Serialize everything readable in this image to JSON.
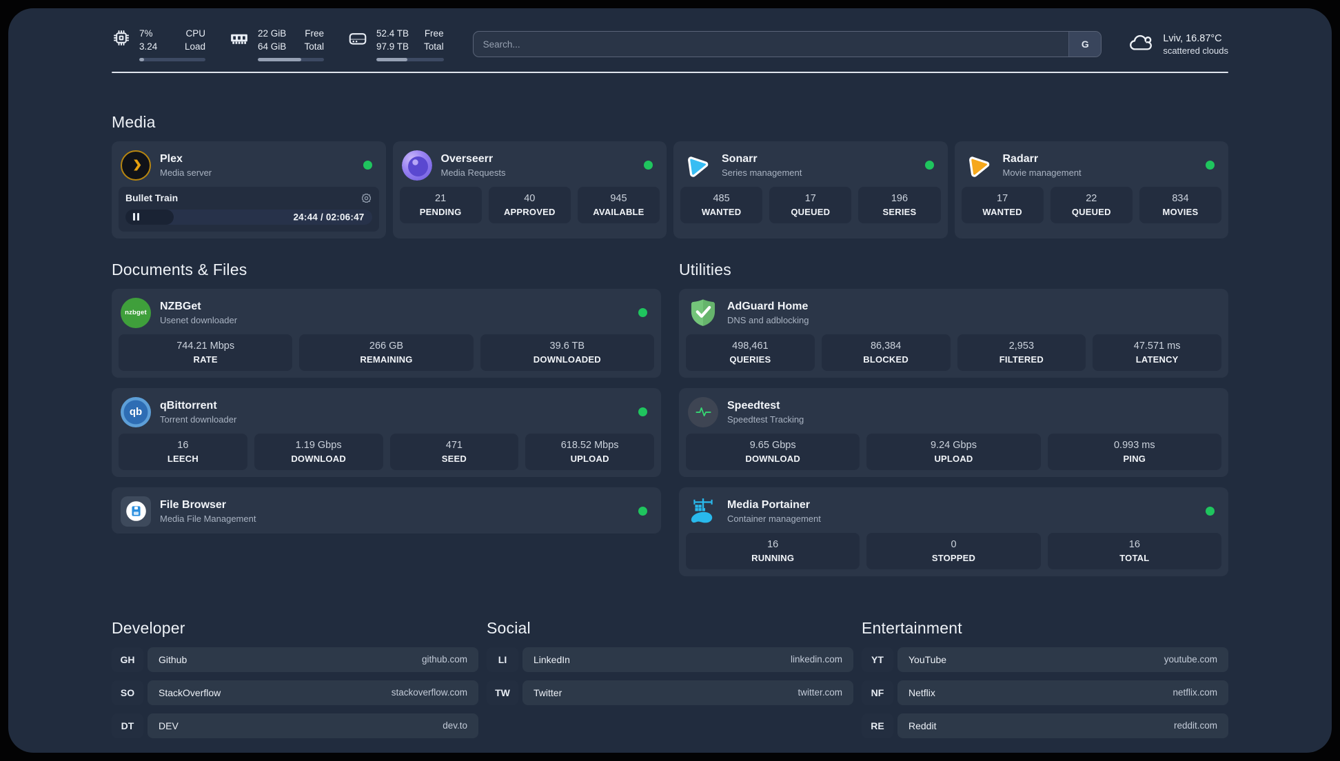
{
  "colors": {
    "status_online": "#1fc55e",
    "accent_plex": "#e6a00e",
    "accent_sonarr": "#38bdf3",
    "accent_radarr": "#f6a81c",
    "accent_adguard": "#66b46c",
    "accent_portainer": "#29b9ec",
    "accent_speedtest": "#35d873"
  },
  "topbar": {
    "system_stats": [
      {
        "icon": "cpu-icon",
        "values": [
          "7%",
          "3.24"
        ],
        "labels": [
          "CPU",
          "Load"
        ],
        "progress_pct": 7
      },
      {
        "icon": "ram-icon",
        "values": [
          "22 GiB",
          "64 GiB"
        ],
        "labels": [
          "Free",
          "Total"
        ],
        "progress_pct": 66
      },
      {
        "icon": "disk-icon",
        "values": [
          "52.4 TB",
          "97.9 TB"
        ],
        "labels": [
          "Free",
          "Total"
        ],
        "progress_pct": 46
      }
    ],
    "search": {
      "placeholder": "Search...",
      "engine_label": "G"
    },
    "weather": {
      "location_temp": "Lviv, 16.87°C",
      "condition": "scattered clouds"
    }
  },
  "sections": {
    "media": {
      "title": "Media",
      "apps": [
        {
          "name": "Plex",
          "subtitle": "Media server",
          "icon": "plex-icon",
          "status": "online",
          "player": {
            "title": "Bullet Train",
            "elapsed": "24:44",
            "duration": "02:06:47",
            "progress_pct": 19.5
          }
        },
        {
          "name": "Overseerr",
          "subtitle": "Media Requests",
          "icon": "overseerr-icon",
          "status": "online",
          "stats": [
            {
              "value": "21",
              "label": "PENDING"
            },
            {
              "value": "40",
              "label": "APPROVED"
            },
            {
              "value": "945",
              "label": "AVAILABLE"
            }
          ]
        },
        {
          "name": "Sonarr",
          "subtitle": "Series management",
          "icon": "sonarr-icon",
          "status": "online",
          "stats": [
            {
              "value": "485",
              "label": "WANTED"
            },
            {
              "value": "17",
              "label": "QUEUED"
            },
            {
              "value": "196",
              "label": "SERIES"
            }
          ]
        },
        {
          "name": "Radarr",
          "subtitle": "Movie management",
          "icon": "radarr-icon",
          "status": "online",
          "stats": [
            {
              "value": "17",
              "label": "WANTED"
            },
            {
              "value": "22",
              "label": "QUEUED"
            },
            {
              "value": "834",
              "label": "MOVIES"
            }
          ]
        }
      ]
    },
    "documents": {
      "title": "Documents & Files",
      "apps": [
        {
          "name": "NZBGet",
          "subtitle": "Usenet downloader",
          "icon": "nzbget-icon",
          "status": "online",
          "stats": [
            {
              "value": "744.21 Mbps",
              "label": "RATE"
            },
            {
              "value": "266 GB",
              "label": "REMAINING"
            },
            {
              "value": "39.6 TB",
              "label": "DOWNLOADED"
            }
          ]
        },
        {
          "name": "qBittorrent",
          "subtitle": "Torrent downloader",
          "icon": "qbittorrent-icon",
          "status": "online",
          "stats": [
            {
              "value": "16",
              "label": "LEECH"
            },
            {
              "value": "1.19 Gbps",
              "label": "DOWNLOAD"
            },
            {
              "value": "471",
              "label": "SEED"
            },
            {
              "value": "618.52 Mbps",
              "label": "UPLOAD"
            }
          ]
        },
        {
          "name": "File Browser",
          "subtitle": "Media File Management",
          "icon": "filebrowser-icon",
          "status": "online",
          "stats": []
        }
      ]
    },
    "utilities": {
      "title": "Utilities",
      "apps": [
        {
          "name": "AdGuard Home",
          "subtitle": "DNS and adblocking",
          "icon": "adguard-icon",
          "status": "none",
          "stats": [
            {
              "value": "498,461",
              "label": "QUERIES"
            },
            {
              "value": "86,384",
              "label": "BLOCKED"
            },
            {
              "value": "2,953",
              "label": "FILTERED"
            },
            {
              "value": "47.571 ms",
              "label": "LATENCY"
            }
          ]
        },
        {
          "name": "Speedtest",
          "subtitle": "Speedtest Tracking",
          "icon": "speedtest-icon",
          "status": "none",
          "stats": [
            {
              "value": "9.65 Gbps",
              "label": "DOWNLOAD"
            },
            {
              "value": "9.24 Gbps",
              "label": "UPLOAD"
            },
            {
              "value": "0.993 ms",
              "label": "PING"
            }
          ]
        },
        {
          "name": "Media Portainer",
          "subtitle": "Container management",
          "icon": "portainer-icon",
          "status": "online",
          "stats": [
            {
              "value": "16",
              "label": "RUNNING"
            },
            {
              "value": "0",
              "label": "STOPPED"
            },
            {
              "value": "16",
              "label": "TOTAL"
            }
          ]
        }
      ]
    },
    "bookmarks": [
      {
        "title": "Developer",
        "links": [
          {
            "abbr": "GH",
            "name": "Github",
            "url": "github.com"
          },
          {
            "abbr": "SO",
            "name": "StackOverflow",
            "url": "stackoverflow.com"
          },
          {
            "abbr": "DT",
            "name": "DEV",
            "url": "dev.to"
          }
        ]
      },
      {
        "title": "Social",
        "links": [
          {
            "abbr": "LI",
            "name": "LinkedIn",
            "url": "linkedin.com"
          },
          {
            "abbr": "TW",
            "name": "Twitter",
            "url": "twitter.com"
          }
        ]
      },
      {
        "title": "Entertainment",
        "links": [
          {
            "abbr": "YT",
            "name": "YouTube",
            "url": "youtube.com"
          },
          {
            "abbr": "NF",
            "name": "Netflix",
            "url": "netflix.com"
          },
          {
            "abbr": "RE",
            "name": "Reddit",
            "url": "reddit.com"
          }
        ]
      }
    ]
  }
}
